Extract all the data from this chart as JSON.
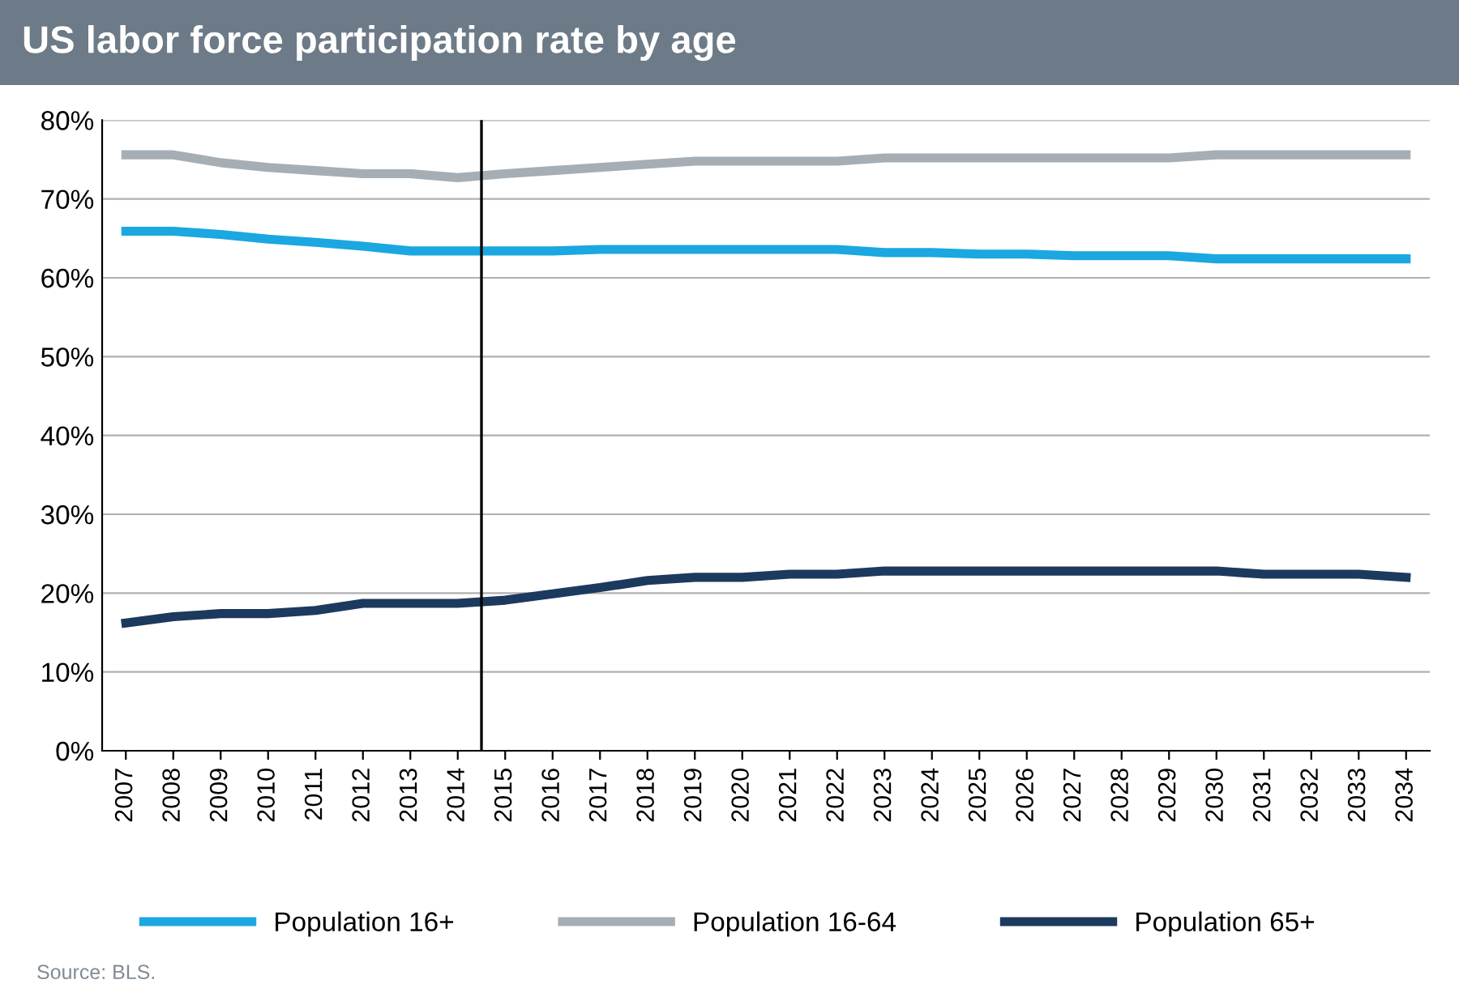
{
  "chart_data": {
    "type": "line",
    "title": "US labor force participation rate by age",
    "x": [
      2007,
      2008,
      2009,
      2010,
      2011,
      2012,
      2013,
      2014,
      2015,
      2016,
      2017,
      2018,
      2019,
      2020,
      2021,
      2022,
      2023,
      2024,
      2025,
      2026,
      2027,
      2028,
      2029,
      2030,
      2031,
      2032,
      2033,
      2034
    ],
    "xlim": [
      2006.5,
      2034.5
    ],
    "xticks": [
      2007,
      2008,
      2009,
      2010,
      2011,
      2012,
      2013,
      2014,
      2015,
      2016,
      2017,
      2018,
      2019,
      2020,
      2021,
      2022,
      2023,
      2024,
      2025,
      2026,
      2027,
      2028,
      2029,
      2030,
      2031,
      2032,
      2033,
      2034
    ],
    "ylim": [
      0,
      80
    ],
    "yticks": [
      {
        "value": 0,
        "label": "0%"
      },
      {
        "value": 10,
        "label": "10%"
      },
      {
        "value": 20,
        "label": "20%"
      },
      {
        "value": 30,
        "label": "30%"
      },
      {
        "value": 40,
        "label": "40%"
      },
      {
        "value": 50,
        "label": "50%"
      },
      {
        "value": 60,
        "label": "60%"
      },
      {
        "value": 70,
        "label": "70%"
      },
      {
        "value": 80,
        "label": "80%"
      }
    ],
    "series": [
      {
        "name": "Population 16+",
        "color": "#1ba7e0",
        "values": [
          65.9,
          65.9,
          65.5,
          64.9,
          64.5,
          64.0,
          63.4,
          63.4,
          63.4,
          63.4,
          63.6,
          63.6,
          63.6,
          63.6,
          63.6,
          63.6,
          63.2,
          63.2,
          63.0,
          63.0,
          62.8,
          62.8,
          62.8,
          62.4,
          62.4,
          62.4,
          62.4,
          62.4
        ]
      },
      {
        "name": "Population 16-64",
        "color": "#a6aeb5",
        "values": [
          75.6,
          75.6,
          74.6,
          74.0,
          73.6,
          73.2,
          73.2,
          72.7,
          73.2,
          73.6,
          74.0,
          74.4,
          74.8,
          74.8,
          74.8,
          74.8,
          75.2,
          75.2,
          75.2,
          75.2,
          75.2,
          75.2,
          75.2,
          75.6,
          75.6,
          75.6,
          75.6,
          75.6
        ]
      },
      {
        "name": "Population 65+",
        "color": "#1c3a5e",
        "values": [
          16.2,
          17.0,
          17.4,
          17.4,
          17.8,
          18.7,
          18.7,
          18.7,
          19.1,
          19.9,
          20.7,
          21.6,
          22.0,
          22.0,
          22.4,
          22.4,
          22.8,
          22.8,
          22.8,
          22.8,
          22.8,
          22.8,
          22.8,
          22.8,
          22.4,
          22.4,
          22.4,
          22.0
        ]
      }
    ],
    "ref_lines": [
      {
        "axis": "x",
        "value": 2014.5,
        "color": "#000000"
      }
    ],
    "grid": "y",
    "legend": "bottom",
    "line_style": "solid",
    "annotations": [
      "Source: BLS."
    ]
  }
}
